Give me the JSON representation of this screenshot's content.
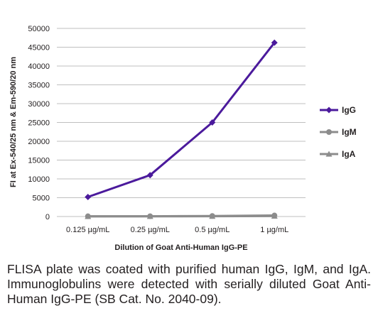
{
  "chart_data": {
    "type": "line",
    "categories": [
      "0.125 µg/mL",
      "0.25 µg/mL",
      "0.5 µg/mL",
      "1 µg/mL"
    ],
    "series": [
      {
        "name": "IgG",
        "values": [
          5200,
          11000,
          25000,
          46200
        ],
        "color": "#4b1a9c",
        "marker": "diamond"
      },
      {
        "name": "IgM",
        "values": [
          60,
          80,
          150,
          280
        ],
        "color": "#8c8c8c",
        "marker": "circle"
      },
      {
        "name": "IgA",
        "values": [
          30,
          40,
          60,
          120
        ],
        "color": "#8c8c8c",
        "marker": "triangle"
      }
    ],
    "xlabel": "Dilution of Goat Anti-Human IgG-PE",
    "ylabel": "FI at Ex-540/25 nm & Em-590/20 nm",
    "ylim": [
      0,
      50000
    ],
    "yticks": [
      0,
      5000,
      10000,
      15000,
      20000,
      25000,
      30000,
      35000,
      40000,
      45000,
      50000
    ],
    "grid": true,
    "legend_position": "right"
  },
  "caption": "FLISA plate was coated with purified human IgG, IgM, and IgA. Immunoglobulins were detected with serially diluted Goat Anti-Human IgG-PE (SB Cat. No. 2040-09)."
}
